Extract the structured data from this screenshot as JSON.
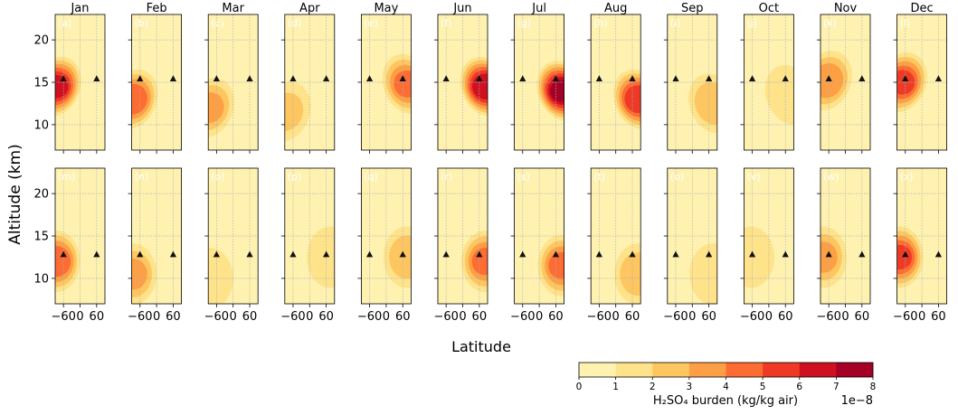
{
  "chart_data": {
    "type": "heatmap",
    "xlabel": "Latitude",
    "ylabel": "Altitude (km)",
    "x_ticks": [
      -60,
      0,
      60
    ],
    "x_tick_labels": [
      "−60",
      "0",
      "60"
    ],
    "xlim": [
      -90,
      90
    ],
    "y_ticks": [
      10,
      15,
      20
    ],
    "y_tick_labels": [
      "10",
      "15",
      "20"
    ],
    "ylim": [
      7,
      23
    ],
    "grid": true,
    "months": [
      "Jan",
      "Feb",
      "Mar",
      "Apr",
      "May",
      "Jun",
      "Jul",
      "Aug",
      "Sep",
      "Oct",
      "Nov",
      "Dec"
    ],
    "rows": [
      {
        "panel_labels": [
          "(a)",
          "(b)",
          "(c)",
          "(d)",
          "(e)",
          "(f)",
          "(g)",
          "(h)",
          "(i)",
          "(j)",
          "(k)",
          "(l)"
        ],
        "markers": [
          {
            "lat": -60,
            "alt": 15.4
          },
          {
            "lat": 60,
            "alt": 15.4
          }
        ],
        "plumes": [
          {
            "lat": -85,
            "alt": 14.5,
            "peak": 5.5,
            "tilt": "south"
          },
          {
            "lat": -85,
            "alt": 13.0,
            "peak": 4.0,
            "tilt": "south"
          },
          {
            "lat": -85,
            "alt": 12.0,
            "peak": 2.5,
            "tilt": "south"
          },
          {
            "lat": -85,
            "alt": 11.5,
            "peak": 1.5,
            "tilt": "south"
          },
          {
            "lat": 75,
            "alt": 14.8,
            "peak": 3.5,
            "tilt": "north"
          },
          {
            "lat": 80,
            "alt": 14.5,
            "peak": 6.0,
            "tilt": "north"
          },
          {
            "lat": 80,
            "alt": 14.0,
            "peak": 6.5,
            "tilt": "north"
          },
          {
            "lat": 80,
            "alt": 13.0,
            "peak": 5.0,
            "tilt": "north"
          },
          {
            "lat": 75,
            "alt": 12.5,
            "peak": 2.0,
            "tilt": "north"
          },
          {
            "lat": 75,
            "alt": 13.5,
            "peak": 1.0,
            "tilt": "north"
          },
          {
            "lat": -65,
            "alt": 15.2,
            "peak": 3.0,
            "tilt": "south"
          },
          {
            "lat": -70,
            "alt": 15.0,
            "peak": 4.5,
            "tilt": "south"
          }
        ]
      },
      {
        "panel_labels": [
          "(m)",
          "(n)",
          "(o)",
          "(p)",
          "(q)",
          "(r)",
          "(s)",
          "(t)",
          "(u)",
          "(v)",
          "(w)",
          "(x)"
        ],
        "markers": [
          {
            "lat": -60,
            "alt": 12.8
          },
          {
            "lat": 60,
            "alt": 12.8
          }
        ],
        "plumes": [
          {
            "lat": -85,
            "alt": 12.0,
            "peak": 4.0
          },
          {
            "lat": -85,
            "alt": 10.5,
            "peak": 2.5
          },
          {
            "lat": -85,
            "alt": 10.0,
            "peak": 1.0
          },
          {
            "lat": 75,
            "alt": 12.5,
            "peak": 0.9
          },
          {
            "lat": 75,
            "alt": 12.5,
            "peak": 2.0
          },
          {
            "lat": 80,
            "alt": 12.0,
            "peak": 3.5
          },
          {
            "lat": 80,
            "alt": 11.5,
            "peak": 3.5
          },
          {
            "lat": 80,
            "alt": 10.5,
            "peak": 2.0
          },
          {
            "lat": 75,
            "alt": 10.5,
            "peak": 1.0
          },
          {
            "lat": -65,
            "alt": 12.5,
            "peak": 1.0
          },
          {
            "lat": -80,
            "alt": 12.5,
            "peak": 2.5
          },
          {
            "lat": -80,
            "alt": 12.5,
            "peak": 4.5
          }
        ]
      }
    ],
    "colorbar": {
      "label": "H₂SO₄ burden (kg/kg air)",
      "ticks": [
        0,
        1,
        2,
        3,
        4,
        5,
        6,
        7,
        8
      ],
      "scale_label": "1e−8",
      "levels": [
        0,
        1,
        2,
        3,
        4,
        5,
        6,
        7,
        8
      ],
      "colors": [
        "#fff2b0",
        "#fee38b",
        "#fec660",
        "#fd9f44",
        "#fc6c33",
        "#ee3a25",
        "#cf1021",
        "#a50026"
      ]
    }
  }
}
